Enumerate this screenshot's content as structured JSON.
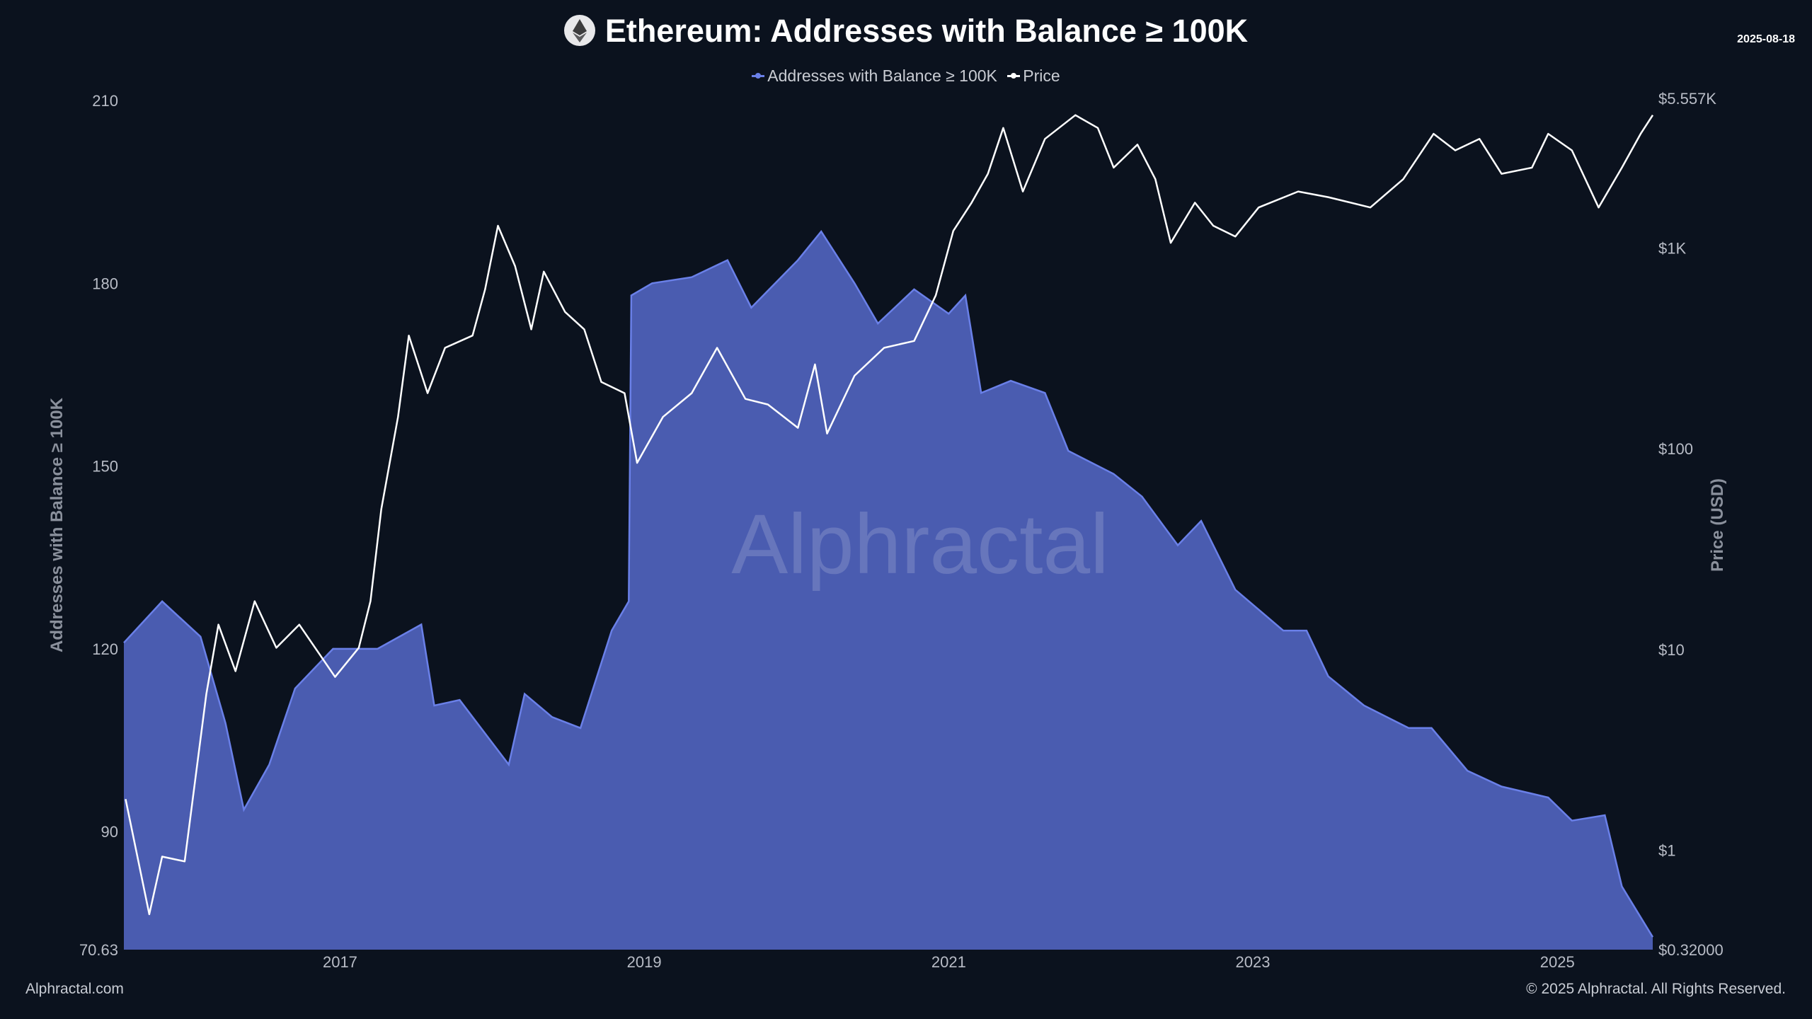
{
  "header": {
    "title": "Ethereum: Addresses with Balance ≥ 100K",
    "date": "2025-08-18",
    "logo_icon": "ethereum-logo-icon"
  },
  "footer": {
    "left": "Alphractal.com",
    "right": "© 2025 Alphractal. All Rights Reserved."
  },
  "watermark": "Alphractal",
  "colors": {
    "background": "#0b121e",
    "addresses_fill": "#4a5cb0",
    "addresses_line": "#6a80e8",
    "price_line": "#ffffff"
  },
  "chart_data": {
    "type": "area",
    "title": "Ethereum: Addresses with Balance ≥ 100K",
    "legend_position": "top-center",
    "grid": false,
    "x_axis": {
      "type": "date",
      "range": [
        "2015-08-01",
        "2025-08-18"
      ],
      "tick_labels": [
        "2017",
        "2019",
        "2021",
        "2023",
        "2025"
      ]
    },
    "y_left": {
      "label": "Addresses with Balance ≥ 100K",
      "range": [
        70.63,
        210
      ],
      "tick_values": [
        70.63,
        90,
        120,
        150,
        180,
        210
      ],
      "tick_labels": [
        "70.63",
        "90",
        "120",
        "150",
        "180",
        "210"
      ]
    },
    "y_right": {
      "label": "Price (USD)",
      "scale": "log",
      "range": [
        0.32,
        5557
      ],
      "tick_values": [
        0.32,
        1,
        10,
        100,
        1000,
        5557
      ],
      "tick_labels": [
        "$0.32000",
        "$1",
        "$10",
        "$100",
        "$1K",
        "$5.557K"
      ]
    },
    "series": [
      {
        "name": "Addresses with Balance ≥ 100K",
        "type": "area",
        "axis": "left",
        "x": [
          "2015-08-01",
          "2015-11-01",
          "2016-02-01",
          "2016-04-01",
          "2016-05-15",
          "2016-07-15",
          "2016-09-15",
          "2016-12-15",
          "2017-04-01",
          "2017-07-15",
          "2017-08-15",
          "2017-10-15",
          "2018-02-10",
          "2018-03-20",
          "2018-05-25",
          "2018-08-01",
          "2018-10-15",
          "2018-11-25",
          "2018-12-01",
          "2019-01-20",
          "2019-04-25",
          "2019-07-20",
          "2019-09-15",
          "2020-01-05",
          "2020-03-01",
          "2020-05-20",
          "2020-07-15",
          "2020-10-10",
          "2021-01-01",
          "2021-02-10",
          "2021-03-20",
          "2021-05-30",
          "2021-08-20",
          "2021-10-15",
          "2022-02-01",
          "2022-04-10",
          "2022-07-05",
          "2022-08-30",
          "2022-11-20",
          "2023-03-15",
          "2023-05-10",
          "2023-07-01",
          "2023-09-25",
          "2024-01-10",
          "2024-03-05",
          "2024-05-30",
          "2024-08-20",
          "2024-12-10",
          "2025-02-05",
          "2025-04-25",
          "2025-06-05",
          "2025-08-18"
        ],
        "values": [
          121,
          127.8,
          122,
          107.8,
          93.6,
          101,
          113.5,
          120,
          120,
          124,
          110.7,
          111.6,
          101,
          112.6,
          108.8,
          107,
          123,
          127.8,
          178,
          180,
          181,
          183.8,
          176,
          183.8,
          188.5,
          180,
          173.4,
          179,
          175,
          178,
          162,
          164,
          162,
          152.5,
          148.7,
          145,
          137,
          141,
          129.7,
          123,
          123,
          115.5,
          110.7,
          107,
          107,
          100,
          97.4,
          95.6,
          91.8,
          92.7,
          81,
          72.7
        ]
      },
      {
        "name": "Price",
        "type": "line",
        "axis": "right",
        "x": [
          "2015-08-05",
          "2015-10-01",
          "2015-11-01",
          "2015-12-25",
          "2016-02-15",
          "2016-03-15",
          "2016-04-25",
          "2016-06-10",
          "2016-08-01",
          "2016-09-25",
          "2016-12-20",
          "2017-02-15",
          "2017-03-15",
          "2017-04-10",
          "2017-05-20",
          "2017-06-15",
          "2017-07-30",
          "2017-09-10",
          "2017-11-15",
          "2017-12-15",
          "2018-01-15",
          "2018-02-25",
          "2018-04-05",
          "2018-05-05",
          "2018-06-25",
          "2018-08-10",
          "2018-09-20",
          "2018-11-15",
          "2018-12-15",
          "2019-02-15",
          "2019-04-25",
          "2019-06-25",
          "2019-09-01",
          "2019-10-25",
          "2020-01-05",
          "2020-02-15",
          "2020-03-15",
          "2020-05-20",
          "2020-07-30",
          "2020-10-10",
          "2020-12-01",
          "2021-01-12",
          "2021-02-25",
          "2021-04-05",
          "2021-05-12",
          "2021-06-28",
          "2021-08-20",
          "2021-11-01",
          "2021-12-25",
          "2022-02-01",
          "2022-03-30",
          "2022-05-12",
          "2022-06-18",
          "2022-08-15",
          "2022-09-28",
          "2022-11-20",
          "2023-01-15",
          "2023-04-20",
          "2023-07-01",
          "2023-10-10",
          "2023-12-28",
          "2024-03-10",
          "2024-05-01",
          "2024-06-28",
          "2024-08-20",
          "2024-11-01",
          "2024-12-10",
          "2025-02-05",
          "2025-04-10",
          "2025-06-05",
          "2025-07-20",
          "2025-08-18"
        ],
        "values": [
          1.8,
          0.48,
          0.93,
          0.88,
          6,
          13.3,
          7.8,
          17.4,
          10.2,
          13.3,
          7.3,
          10.2,
          17.4,
          50,
          144,
          366,
          189,
          318,
          366,
          621,
          1290,
          812,
          393,
          762,
          480,
          393,
          215,
          189,
          85,
          144,
          189,
          318,
          177,
          166,
          127,
          263,
          119,
          231,
          318,
          344,
          581,
          1215,
          1680,
          2340,
          3960,
          1910,
          3490,
          4585,
          3960,
          2510,
          3270,
          2200,
          1060,
          1680,
          1290,
          1140,
          1590,
          1910,
          1790,
          1590,
          2200,
          3700,
          3060,
          3490,
          2340,
          2510,
          3700,
          3060,
          1590,
          2510,
          3700,
          4585
        ]
      }
    ]
  }
}
